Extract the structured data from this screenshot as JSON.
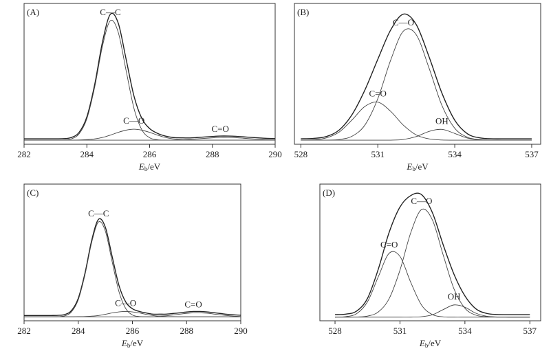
{
  "chart_data": [
    {
      "type": "line",
      "panel_label": "(A)",
      "xlim": [
        282,
        290
      ],
      "xticks": [
        282,
        284,
        286,
        288,
        290
      ],
      "ylim": [
        -3,
        100
      ],
      "xlabel": {
        "symbol": "E",
        "subscript": "b",
        "unit": "/eV"
      },
      "x": [
        282,
        282.25,
        282.5,
        282.75,
        283,
        283.25,
        283.5,
        283.75,
        284,
        284.25,
        284.5,
        284.75,
        285,
        285.25,
        285.5,
        285.75,
        286,
        286.25,
        286.5,
        286.75,
        287,
        287.25,
        287.5,
        287.75,
        288,
        288.25,
        288.5,
        288.75,
        289,
        289.25,
        289.5,
        289.75,
        290
      ],
      "series": [
        {
          "color": "#222",
          "values": [
            1,
            1,
            1,
            1,
            1,
            1.1,
            1.9,
            5.6,
            17.0,
            40.7,
            72.0,
            92.1,
            85.6,
            59.3,
            32.4,
            16.0,
            8.5,
            5.0,
            3.0,
            1.9,
            1.7,
            1.6,
            1.9,
            2.3,
            2.7,
            3.0,
            3.0,
            2.8,
            2.4,
            2.0,
            1.6,
            1.3,
            1.1
          ]
        },
        {
          "color": "#444",
          "label": "C—C",
          "values": [
            0,
            0,
            0,
            0,
            0,
            0.1,
            0.9,
            4.5,
            15.6,
            38.8,
            69.0,
            87.4,
            78.9,
            51.0,
            23.4,
            7.7,
            1.8,
            0.3,
            0,
            0,
            0,
            0,
            0,
            0,
            0,
            0,
            0,
            0,
            0,
            0,
            0,
            0,
            0
          ]
        },
        {
          "color": "#444",
          "label": "C—O",
          "values": [
            0,
            0,
            0,
            0,
            0,
            0,
            0,
            0.1,
            0.4,
            0.9,
            2.0,
            3.7,
            5.7,
            7.3,
            8.0,
            7.3,
            5.7,
            3.7,
            2.0,
            0.9,
            0.4,
            0.1,
            0,
            0,
            0,
            0,
            0,
            0,
            0,
            0,
            0,
            0,
            0
          ]
        },
        {
          "color": "#444",
          "label": "C=O",
          "values": [
            0,
            0,
            0,
            0,
            0,
            0,
            0,
            0,
            0,
            0,
            0,
            0,
            0,
            0,
            0,
            0,
            0,
            0,
            0,
            0,
            0.3,
            0.5,
            0.9,
            1.3,
            1.7,
            2.0,
            2.0,
            1.8,
            1.4,
            1.0,
            0.6,
            0.3,
            0.1
          ]
        }
      ]
    },
    {
      "type": "line",
      "panel_label": "(B)",
      "xlim": [
        527.75,
        537.35
      ],
      "xticks": [
        528,
        531,
        534,
        537
      ],
      "ylim": [
        -3,
        100
      ],
      "xlabel": {
        "symbol": "E",
        "subscript": "b",
        "unit": "/eV"
      },
      "x": [
        528,
        528.5,
        529,
        529.5,
        530,
        530.5,
        531,
        531.5,
        532,
        532.5,
        533,
        533.5,
        534,
        534.5,
        535,
        535.5,
        536,
        536.5,
        537
      ],
      "series": [
        {
          "color": "#222",
          "values": [
            1.0,
            1.3,
            2.7,
            7.5,
            18.8,
            36.8,
            59.1,
            80.5,
            92.2,
            84.5,
            60.9,
            34.4,
            14.6,
            4.6,
            1.6,
            1.0,
            1.0,
            1.0,
            1.0
          ]
        },
        {
          "color": "#444",
          "label": "C=O",
          "values": [
            0,
            0.3,
            1.7,
            6.0,
            14.9,
            24.7,
            27.8,
            21.1,
            10.9,
            3.8,
            0.9,
            0.1,
            0,
            0,
            0,
            0,
            0,
            0,
            0
          ]
        },
        {
          "color": "#444",
          "label": "C—O",
          "values": [
            0,
            0,
            0,
            0.5,
            2.9,
            11.1,
            30.3,
            58.4,
            79.8,
            77.1,
            52.6,
            25.4,
            8.7,
            2.1,
            0.4,
            0,
            0,
            0,
            0
          ]
        },
        {
          "color": "#444",
          "label": "OH",
          "values": [
            0,
            0,
            0,
            0,
            0,
            0,
            0,
            0,
            0.5,
            2.6,
            6.4,
            7.9,
            4.9,
            1.5,
            0.2,
            0,
            0,
            0,
            0
          ]
        }
      ]
    },
    {
      "type": "line",
      "panel_label": "(C)",
      "xlim": [
        282,
        290
      ],
      "xticks": [
        282,
        284,
        286,
        288,
        290
      ],
      "ylim": [
        -3,
        100
      ],
      "xlabel": {
        "symbol": "E",
        "subscript": "b",
        "unit": "/eV"
      },
      "x": [
        282,
        282.25,
        282.5,
        282.75,
        283,
        283.25,
        283.5,
        283.75,
        284,
        284.25,
        284.5,
        284.75,
        285,
        285.25,
        285.5,
        285.75,
        286,
        286.25,
        286.5,
        286.75,
        287,
        287.25,
        287.5,
        287.75,
        288,
        288.25,
        288.5,
        288.75,
        289,
        289.25,
        289.5,
        289.75,
        290
      ],
      "series": [
        {
          "color": "#222",
          "values": [
            1,
            1,
            1,
            1,
            1,
            1.1,
            1.7,
            4.7,
            13.9,
            33.0,
            57.9,
            73.5,
            67.5,
            45.6,
            23.9,
            11.3,
            6.1,
            4.1,
            2.9,
            2.0,
            2.0,
            2.0,
            2.5,
            3.0,
            3.6,
            4.0,
            4.0,
            3.7,
            3.1,
            2.5,
            1.9,
            1.5,
            1.2
          ]
        },
        {
          "color": "#444",
          "label": "C—C",
          "values": [
            0,
            0,
            0,
            0,
            0,
            0.1,
            0.7,
            3.7,
            12.8,
            31.8,
            56.4,
            71.5,
            64.6,
            41.7,
            19.2,
            6.3,
            1.4,
            0.2,
            0,
            0,
            0,
            0,
            0,
            0,
            0,
            0,
            0,
            0,
            0,
            0,
            0,
            0,
            0
          ]
        },
        {
          "color": "#444",
          "label": "C—O",
          "values": [
            0,
            0,
            0,
            0,
            0,
            0,
            0,
            0,
            0.1,
            0.2,
            0.5,
            1.0,
            1.9,
            2.9,
            3.7,
            4.0,
            3.7,
            2.9,
            1.9,
            1.0,
            0.5,
            0.2,
            0.1,
            0,
            0,
            0,
            0,
            0,
            0,
            0,
            0,
            0,
            0
          ]
        },
        {
          "color": "#444",
          "label": "C=O",
          "values": [
            0,
            0,
            0,
            0,
            0,
            0,
            0,
            0,
            0,
            0,
            0,
            0,
            0,
            0,
            0,
            0,
            0,
            0,
            0,
            0,
            0.5,
            0.8,
            1.4,
            2.0,
            2.6,
            3.0,
            3.0,
            2.7,
            2.1,
            1.5,
            0.9,
            0.5,
            0.2
          ]
        }
      ]
    },
    {
      "type": "line",
      "panel_label": "(D)",
      "xlim": [
        527.3,
        537.5
      ],
      "xticks": [
        528,
        531,
        534,
        537
      ],
      "ylim": [
        -3,
        108
      ],
      "xlabel": {
        "symbol": "E",
        "subscript": "b",
        "unit": "/eV"
      },
      "x": [
        528,
        528.5,
        529,
        529.5,
        530,
        530.5,
        531,
        531.5,
        532,
        532.5,
        533,
        533.5,
        534,
        534.5,
        535,
        535.5,
        536,
        536.5,
        537
      ],
      "series": [
        {
          "color": "#222",
          "values": [
            2.0,
            2.4,
            4.9,
            15.2,
            39.0,
            68.8,
            89.4,
            98.7,
            99.4,
            84.7,
            58.5,
            34.6,
            17.2,
            6.8,
            3.0,
            2.1,
            2.0,
            2.0,
            2.0
          ]
        },
        {
          "color": "#444",
          "label": "C=O",
          "values": [
            0,
            0.4,
            2.8,
            12.4,
            32.8,
            51.8,
            49.3,
            28.1,
            9.7,
            2.0,
            0.2,
            0,
            0,
            0,
            0,
            0,
            0,
            0,
            0
          ]
        },
        {
          "color": "#444",
          "label": "C—O",
          "values": [
            0,
            0,
            0.1,
            0.8,
            4.2,
            15.0,
            38.1,
            68.6,
            87.4,
            78.8,
            50.2,
            22.7,
            7.2,
            1.6,
            0.3,
            0,
            0,
            0,
            0
          ]
        },
        {
          "color": "#444",
          "label": "OH",
          "values": [
            0,
            0,
            0,
            0,
            0,
            0,
            0,
            0,
            0.3,
            1.9,
            6.1,
            9.9,
            8.0,
            3.2,
            0.7,
            0.1,
            0,
            0,
            0
          ]
        }
      ]
    }
  ]
}
